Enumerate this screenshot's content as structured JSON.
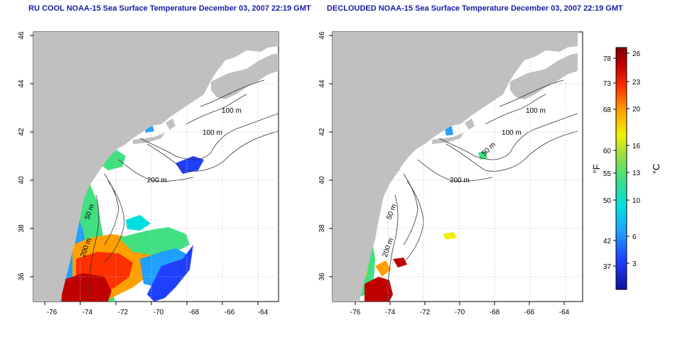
{
  "panels": [
    {
      "id": "raw",
      "title": "RU COOL NOAA-15 Sea Surface Temperature December 03, 2007 22:19 GMT",
      "contour_labels": [
        "100 m",
        "100 m",
        "200 m",
        "50 m",
        "200 m"
      ]
    },
    {
      "id": "declouded",
      "title": "DECLOUDED NOAA-15 Sea Surface Temperature December 03, 2007 22:19 GMT",
      "contour_labels": [
        "100 m",
        "100 m",
        "50 m",
        "200 m",
        "50 m",
        "200 m"
      ]
    }
  ],
  "axes": {
    "x_ticks": [
      "-76",
      "-74",
      "-72",
      "-70",
      "-68",
      "-66",
      "-64"
    ],
    "y_ticks": [
      "36",
      "38",
      "40",
      "42",
      "44",
      "46"
    ]
  },
  "colorbar": {
    "fahrenheit_label": "°F",
    "celsius_label": "°C",
    "fahrenheit_ticks": [
      "78",
      "73",
      "68",
      "60",
      "55",
      "50",
      "42",
      "37"
    ],
    "celsius_ticks": [
      "26",
      "23",
      "20",
      "16",
      "13",
      "10",
      "6",
      "3"
    ],
    "colors": [
      "#1010a0",
      "#1f3fff",
      "#1fa0ff",
      "#00e0e0",
      "#40e080",
      "#a0e040",
      "#f0f000",
      "#ffa000",
      "#ff3000",
      "#c00000",
      "#800000"
    ]
  },
  "colors": {
    "land": "#c0c0c0",
    "water": "#ffffff",
    "title": "#1a1aa6",
    "grid": "#bbbbbb"
  }
}
